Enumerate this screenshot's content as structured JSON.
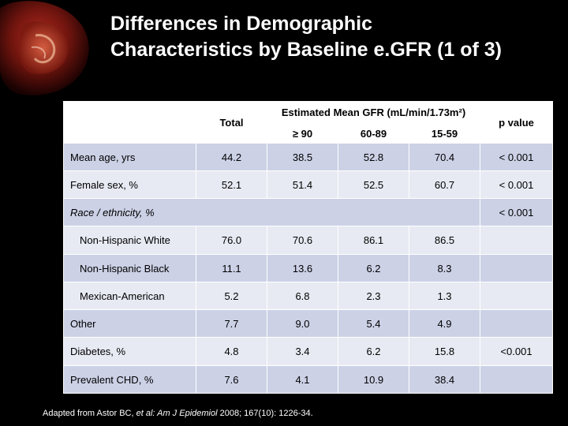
{
  "slide": {
    "title_line1": "Differences in Demographic",
    "title_line2": "Characteristics by Baseline e.GFR  (1 of 3)"
  },
  "table": {
    "header": {
      "total": "Total",
      "group": "Estimated Mean GFR (mL/min/1.73m²)",
      "sub": [
        "≥ 90",
        "60-89",
        "15-59"
      ],
      "p": "p value"
    },
    "rows": [
      {
        "label": "Mean age, yrs",
        "values": [
          "44.2",
          "38.5",
          "52.8",
          "70.4"
        ],
        "p": "< 0.001"
      },
      {
        "label": "Female sex, %",
        "values": [
          "52.1",
          "51.4",
          "52.5",
          "60.7"
        ],
        "p": "< 0.001"
      },
      {
        "label": "Race / ethnicity, %",
        "values": [
          "",
          "",
          "",
          ""
        ],
        "p": "< 0.001"
      },
      {
        "label": "Non-Hispanic White",
        "values": [
          "76.0",
          "70.6",
          "86.1",
          "86.5"
        ],
        "p": ""
      },
      {
        "label": "Non-Hispanic Black",
        "values": [
          "11.1",
          "13.6",
          "6.2",
          "8.3"
        ],
        "p": ""
      },
      {
        "label": "Mexican-American",
        "values": [
          "5.2",
          "6.8",
          "2.3",
          "1.3"
        ],
        "p": ""
      },
      {
        "label": "Other",
        "values": [
          "7.7",
          "9.0",
          "5.4",
          "4.9"
        ],
        "p": ""
      },
      {
        "label": "Diabetes, %",
        "values": [
          "4.8",
          "3.4",
          "6.2",
          "15.8"
        ],
        "p": "<0.001"
      },
      {
        "label": "Prevalent CHD, %",
        "values": [
          "7.6",
          "4.1",
          "10.9",
          "38.4"
        ],
        "p": ""
      }
    ]
  },
  "footnote": {
    "prefix": "Adapted from Astor BC, ",
    "etal": "et al: Am J Epidemiol",
    "suffix": " 2008; 167(10): 1226-34."
  },
  "colors": {
    "background": "#000000",
    "row_dark": "#ccd1e6",
    "row_light": "#e8eaf3",
    "title": "#ffffff"
  }
}
